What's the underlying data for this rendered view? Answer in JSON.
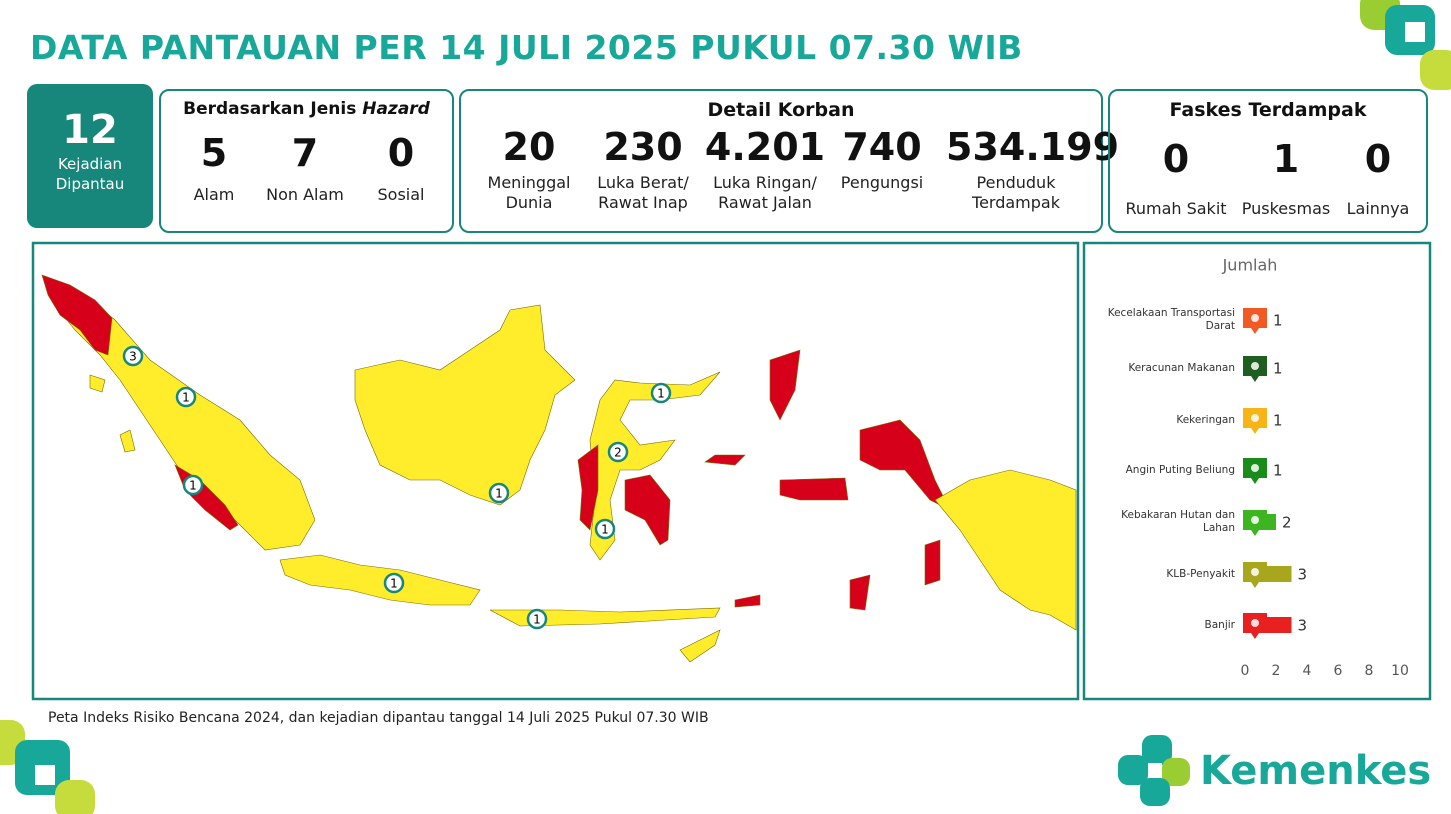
{
  "header": {
    "title": "DATA PANTAUAN PER 14 JULI 2025 PUKUL 07.30 WIB"
  },
  "summary": {
    "value": 12,
    "label": "Kejadian\nDipantau"
  },
  "hazard": {
    "title": "Berdasarkan Jenis",
    "title_emphasis": "Hazard",
    "items": [
      {
        "value": 5,
        "label": "Alam"
      },
      {
        "value": 7,
        "label": "Non Alam"
      },
      {
        "value": 0,
        "label": "Sosial"
      }
    ]
  },
  "korban": {
    "title": "Detail Korban",
    "items": [
      {
        "value": "20",
        "label": "Meninggal\nDunia"
      },
      {
        "value": "230",
        "label": "Luka Berat/\nRawat Inap"
      },
      {
        "value": "4.201",
        "label": "Luka Ringan/\nRawat Jalan"
      },
      {
        "value": "740",
        "label": "Pengungsi"
      },
      {
        "value": "534.199",
        "label": "Penduduk\nTerdampak"
      }
    ]
  },
  "faskes": {
    "title": "Faskes Terdampak",
    "items": [
      {
        "value": 0,
        "label": "Rumah Sakit"
      },
      {
        "value": 1,
        "label": "Puskesmas"
      },
      {
        "value": 0,
        "label": "Lainnya"
      }
    ]
  },
  "map": {
    "markers": [
      3,
      1,
      1,
      1,
      2,
      1,
      1,
      1,
      1
    ],
    "caption": "Peta Indeks Risiko Bencana 2024, dan kejadian dipantau tanggal 14 Juli 2025 Pukul 07.30 WIB"
  },
  "chart_data": {
    "type": "bar",
    "orientation": "horizontal",
    "title": "Jumlah",
    "categories": [
      "Kecelakaan Transportasi\nDarat",
      "Keracunan Makanan",
      "Kekeringan",
      "Angin Puting Beliung",
      "Kebakaran Hutan dan\nLahan",
      "KLB-Penyakit",
      "Banjir"
    ],
    "values": [
      1,
      1,
      1,
      1,
      2,
      3,
      3
    ],
    "colors": [
      "#f15a22",
      "#1e5e20",
      "#f6b417",
      "#1a8c1a",
      "#3cb521",
      "#a8a61c",
      "#e8201f"
    ],
    "xlim": [
      0,
      10
    ],
    "xticks": [
      0,
      2,
      4,
      6,
      8,
      10
    ]
  },
  "logo": {
    "text": "Kemenkes"
  }
}
